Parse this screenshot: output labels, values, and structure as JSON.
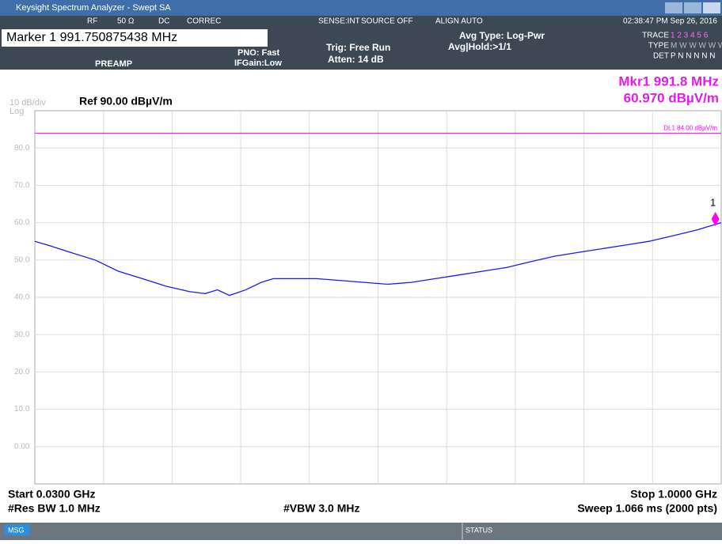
{
  "window": {
    "title": "Keysight Spectrum Analyzer - Swept SA",
    "status_row": [
      "RF",
      "50 Ω",
      "DC",
      "CORREC",
      "SENSE:INT",
      "SOURCE OFF",
      "ALIGN AUTO",
      "02:38:47 PM Sep 26, 2016"
    ]
  },
  "settings": {
    "marker": "Marker 1 991.750875438 MHz",
    "preamp": "PREAMP",
    "pno": "PNO: Fast",
    "ifgain": "IFGain:Low",
    "trig": "Trig: Free Run",
    "atten": "Atten: 14 dB",
    "avg_type": "Avg Type: Log-Pwr",
    "avg_hold": "Avg|Hold:>1/1",
    "trace_label": "TRACE",
    "trace_numbers": "1 2 3 4 5 6",
    "type_label": "TYPE",
    "type_values": "M W W W W W",
    "det_label": "DET",
    "det_values": "P N N N N N"
  },
  "readout": {
    "marker_freq": "Mkr1 991.8 MHz",
    "marker_level": "60.970 dBµV/m",
    "scale": "10 dB/div",
    "scale_type": "Log",
    "ref": "Ref 90.00 dBµV/m"
  },
  "footer": {
    "start": "Start 0.0300 GHz",
    "stop": "Stop 1.0000 GHz",
    "rbw": "#Res BW 1.0 MHz",
    "vbw": "#VBW 3.0 MHz",
    "sweep": "Sweep  1.066 ms (2000 pts)",
    "msg": "MSG",
    "status": "STATUS"
  },
  "chart_data": {
    "type": "line",
    "xlim": [
      30,
      1000
    ],
    "ylim": [
      -10,
      90
    ],
    "yticks": [
      {
        "value": 80,
        "label": "80.0"
      },
      {
        "value": 70,
        "label": "70.0"
      },
      {
        "value": 60,
        "label": "60.0"
      },
      {
        "value": 50,
        "label": "50.0"
      },
      {
        "value": 40,
        "label": "40.0"
      },
      {
        "value": 30,
        "label": "30.0"
      },
      {
        "value": 20,
        "label": "20.0"
      },
      {
        "value": 10,
        "label": "10.0"
      },
      {
        "value": 0,
        "label": "0.00"
      }
    ],
    "series": [
      {
        "name": "Trace 1",
        "color": "#1a1aff",
        "x": [
          30,
          48,
          81,
          115,
          148,
          182,
          215,
          249,
          271,
          288,
          305,
          328,
          350,
          367,
          395,
          428,
          462,
          495,
          529,
          562,
          596,
          630,
          663,
          697,
          730,
          764,
          797,
          831,
          865,
          898,
          932,
          965,
          1000
        ],
        "values": [
          55,
          54,
          52,
          50,
          47,
          45,
          43,
          41.5,
          41,
          42,
          40.5,
          42,
          44,
          45,
          45,
          45,
          44.5,
          44,
          43.5,
          44,
          45,
          46,
          47,
          48,
          49.5,
          51,
          52,
          53,
          54,
          55,
          56.5,
          58,
          60
        ]
      }
    ],
    "marker": {
      "label": "1",
      "x": 991.750875438,
      "value": 60.97,
      "color": "#ff00ff"
    },
    "display_line": {
      "label": "DL1 84.00 dBµV/m",
      "value": 84,
      "color": "#ff00ff"
    }
  }
}
